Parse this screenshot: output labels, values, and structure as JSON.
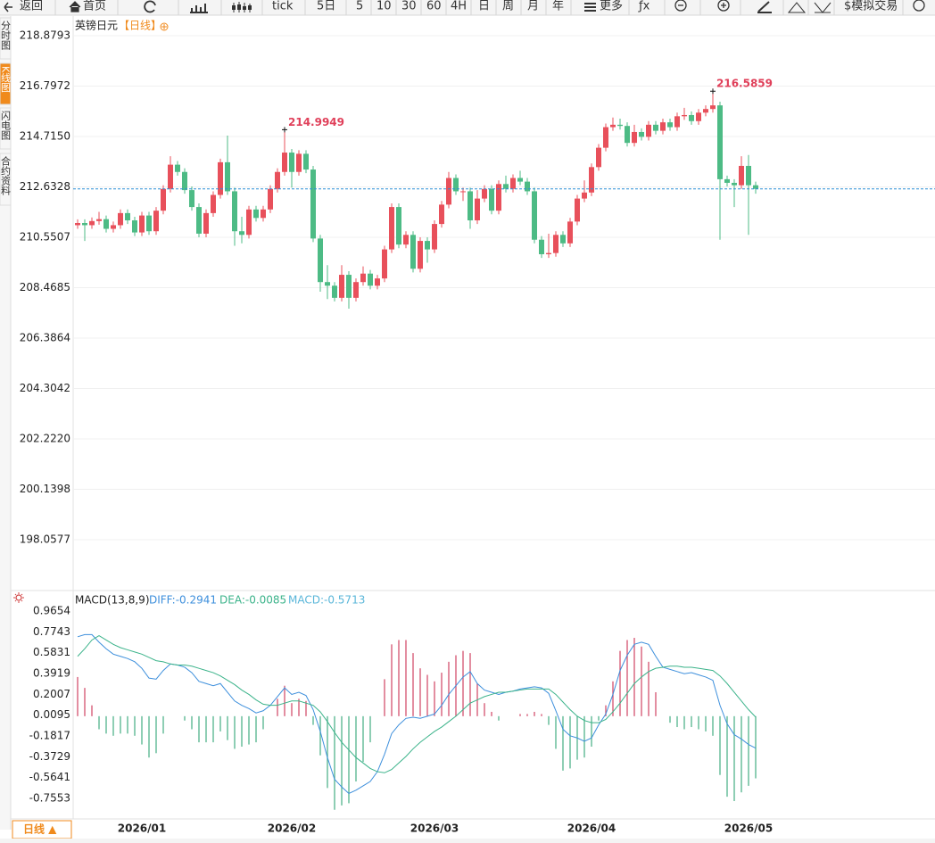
{
  "toolbar": {
    "items": [
      "返回",
      "首页",
      "tick",
      "5日",
      "5",
      "10",
      "30",
      "60",
      "4H",
      "日",
      "周",
      "月",
      "年",
      "更多",
      "ƒx",
      "$模拟交易"
    ]
  },
  "sidebar": {
    "tabs": [
      "分时图",
      "K线图",
      "闪电图",
      "合约资料"
    ],
    "active": 1
  },
  "bottom_tab": "日线 ▲",
  "chart_data": [
    {
      "type": "candlestick",
      "title": "英镑日元",
      "subtitle": "【日线】",
      "up_color": "#e8505b",
      "down_color": "#4dbb85",
      "price_line": true,
      "price_line_color": "#2b8fd6",
      "annotation_color": "#e0405a",
      "grid": true,
      "ylim": [
        196.03,
        219.69
      ],
      "yticks": [
        218.8793,
        216.7972,
        {
          "value": 214.715,
          "label": "214.7150"
        },
        212.6328,
        210.5507,
        208.4685,
        206.3864,
        204.3042,
        {
          "value": 202.222,
          "label": "202.2220"
        },
        200.1398,
        198.0577
      ],
      "open": [
        211.05,
        211.14,
        211.05,
        211.22,
        211.3,
        210.9,
        211.05,
        211.55,
        211.25,
        210.75,
        211.45,
        210.8,
        211.65,
        212.55,
        213.55,
        213.25,
        212.5,
        211.8,
        210.7,
        211.55,
        212.3,
        213.65,
        212.45,
        210.8,
        210.65,
        211.7,
        211.35,
        211.7,
        212.55,
        213.25,
        214.05,
        213.25,
        214.0,
        213.35,
        210.5,
        208.7,
        208.55,
        208.05,
        209.0,
        208.05,
        208.7,
        209.05,
        208.55,
        208.85,
        210.05,
        211.8,
        210.25,
        210.65,
        209.25,
        210.4,
        210.05,
        211.1,
        211.9,
        213.0,
        212.45,
        212.45,
        211.25,
        212.15,
        212.55,
        211.65,
        212.75,
        212.55,
        213.0,
        212.85,
        212.45,
        210.45,
        209.85,
        209.9,
        210.65,
        210.3,
        211.2,
        212.15,
        212.4,
        213.45,
        214.25,
        215.1,
        215.2,
        215.15,
        214.45,
        214.9,
        214.7,
        215.2,
        214.95,
        215.3,
        215.1,
        215.55,
        215.6,
        215.35,
        215.7,
        215.85,
        216.0,
        212.95,
        212.8,
        212.7,
        213.5,
        212.7
      ],
      "high": [
        211.29,
        211.29,
        211.37,
        211.6,
        211.45,
        211.2,
        211.7,
        211.7,
        211.4,
        211.6,
        211.6,
        211.8,
        212.7,
        213.9,
        213.7,
        213.4,
        212.65,
        211.95,
        211.7,
        212.45,
        213.8,
        214.75,
        212.6,
        211.4,
        211.85,
        211.85,
        211.85,
        212.7,
        213.4,
        214.9949,
        214.2,
        214.15,
        214.15,
        213.5,
        210.65,
        209.4,
        208.7,
        209.4,
        209.15,
        208.85,
        209.35,
        209.2,
        209.0,
        210.2,
        211.95,
        211.95,
        210.8,
        210.8,
        210.55,
        210.55,
        211.25,
        212.05,
        213.25,
        213.15,
        212.6,
        212.6,
        212.5,
        212.7,
        212.7,
        212.9,
        213.1,
        213.15,
        213.3,
        213.0,
        212.6,
        210.6,
        210.7,
        210.8,
        210.8,
        211.35,
        212.3,
        212.9,
        213.6,
        214.4,
        215.25,
        215.5,
        215.45,
        215.3,
        215.2,
        215.05,
        215.35,
        215.35,
        215.45,
        215.45,
        215.7,
        215.9,
        215.75,
        215.85,
        216.0,
        216.5859,
        216.15,
        213.1,
        212.95,
        213.9,
        213.95,
        212.85
      ],
      "low": [
        210.9,
        210.4,
        210.9,
        211.07,
        210.75,
        210.75,
        210.9,
        211.1,
        210.6,
        210.6,
        210.65,
        210.65,
        211.5,
        212.4,
        213.1,
        212.35,
        211.65,
        210.55,
        210.55,
        211.4,
        212.15,
        212.3,
        210.2,
        210.3,
        210.5,
        211.2,
        211.2,
        211.55,
        212.4,
        213.1,
        212.6,
        213.1,
        213.2,
        210.35,
        208.3,
        208.0,
        207.9,
        207.9,
        207.6,
        207.9,
        208.55,
        208.4,
        208.4,
        208.7,
        209.9,
        210.1,
        210.1,
        209.1,
        209.1,
        209.5,
        209.9,
        210.95,
        211.75,
        212.3,
        212.05,
        210.9,
        211.1,
        212.0,
        211.5,
        211.5,
        212.4,
        212.4,
        212.7,
        212.3,
        210.3,
        209.7,
        209.7,
        209.75,
        210.15,
        210.15,
        211.05,
        212.0,
        212.25,
        213.3,
        214.1,
        214.95,
        215.0,
        214.3,
        214.3,
        214.55,
        214.55,
        214.8,
        214.8,
        214.95,
        214.95,
        215.4,
        215.2,
        215.2,
        215.55,
        215.7,
        210.45,
        212.65,
        211.8,
        212.55,
        210.65,
        212.35
      ],
      "close": [
        211.14,
        211.05,
        211.22,
        211.3,
        210.9,
        211.05,
        211.55,
        211.25,
        210.75,
        211.45,
        210.8,
        211.65,
        212.55,
        213.55,
        213.25,
        212.5,
        211.8,
        210.7,
        211.55,
        212.3,
        213.65,
        212.45,
        210.8,
        210.65,
        211.7,
        211.35,
        211.7,
        212.55,
        213.25,
        214.05,
        213.25,
        214.0,
        213.35,
        210.5,
        208.7,
        208.55,
        208.05,
        209.0,
        208.05,
        208.7,
        209.05,
        208.55,
        208.85,
        210.05,
        211.8,
        210.25,
        210.65,
        209.25,
        210.4,
        210.05,
        211.1,
        211.9,
        213.0,
        212.45,
        212.45,
        211.25,
        212.15,
        212.55,
        211.65,
        212.75,
        212.55,
        213.0,
        212.85,
        212.45,
        210.45,
        209.85,
        209.9,
        210.65,
        210.3,
        211.2,
        212.15,
        212.4,
        213.45,
        214.25,
        215.1,
        215.2,
        215.15,
        214.45,
        214.9,
        214.7,
        215.2,
        214.95,
        215.3,
        215.1,
        215.55,
        215.6,
        215.35,
        215.7,
        215.85,
        216.0,
        212.95,
        212.8,
        212.7,
        213.5,
        212.7,
        212.55
      ]
    },
    {
      "type": "macd",
      "title": "MACD(13,8,9)",
      "ylim": [
        -0.944,
        1.13
      ],
      "yticks": [
        0.9654,
        0.7743,
        0.5831,
        0.3919,
        0.2007,
        0.0095,
        -0.1817,
        -0.3729,
        -0.5641,
        -0.7553
      ],
      "up_color": "#d4506e",
      "down_color": "#52b38c",
      "categories": [
        null,
        null,
        null,
        null,
        null,
        null,
        null,
        null,
        null,
        "2026/01",
        null,
        null,
        null,
        null,
        null,
        null,
        null,
        null,
        null,
        null,
        null,
        null,
        null,
        null,
        null,
        null,
        null,
        null,
        null,
        null,
        "2026/02",
        null,
        null,
        null,
        null,
        null,
        null,
        null,
        null,
        null,
        null,
        null,
        null,
        null,
        null,
        null,
        null,
        null,
        null,
        null,
        "2026/03",
        null,
        null,
        null,
        null,
        null,
        null,
        null,
        null,
        null,
        null,
        null,
        null,
        null,
        null,
        null,
        null,
        null,
        null,
        null,
        null,
        null,
        "2026/04",
        null,
        null,
        null,
        null,
        null,
        null,
        null,
        null,
        null,
        null,
        null,
        null,
        null,
        null,
        null,
        null,
        null,
        null,
        null,
        null,
        null,
        "2026/05",
        null
      ],
      "series": [
        {
          "name": "DIFF:-0.2941",
          "color": "#3d8fdc",
          "kind": "line",
          "values": [
            0.73,
            0.75,
            0.75,
            0.68,
            0.62,
            0.57,
            0.55,
            0.53,
            0.5,
            0.44,
            0.35,
            0.34,
            0.42,
            0.48,
            0.47,
            0.45,
            0.4,
            0.32,
            0.3,
            0.28,
            0.3,
            0.22,
            0.14,
            0.1,
            0.07,
            0.03,
            0.05,
            0.1,
            0.18,
            0.26,
            0.2,
            0.22,
            0.19,
            0.06,
            -0.14,
            -0.38,
            -0.58,
            -0.65,
            -0.71,
            -0.68,
            -0.64,
            -0.6,
            -0.51,
            -0.35,
            -0.16,
            -0.08,
            -0.02,
            -0.01,
            -0.02,
            0.0,
            0.02,
            0.1,
            0.2,
            0.28,
            0.36,
            0.41,
            0.3,
            0.24,
            0.22,
            0.2,
            0.22,
            0.23,
            0.25,
            0.26,
            0.27,
            0.26,
            0.21,
            0.05,
            -0.12,
            -0.18,
            -0.2,
            -0.23,
            -0.2,
            -0.08,
            0.02,
            0.2,
            0.42,
            0.56,
            0.66,
            0.68,
            0.66,
            0.55,
            0.45,
            0.43,
            0.41,
            0.39,
            0.4,
            0.38,
            0.36,
            0.33,
            0.1,
            -0.07,
            -0.17,
            -0.21,
            -0.26,
            -0.2941
          ]
        },
        {
          "name": "DEA:-0.0085",
          "color": "#3bb38a",
          "kind": "line",
          "values": [
            0.55,
            0.62,
            0.7,
            0.74,
            0.7,
            0.66,
            0.63,
            0.61,
            0.59,
            0.57,
            0.54,
            0.51,
            0.5,
            0.48,
            0.47,
            0.47,
            0.46,
            0.44,
            0.42,
            0.4,
            0.37,
            0.33,
            0.29,
            0.24,
            0.2,
            0.15,
            0.11,
            0.1,
            0.1,
            0.12,
            0.14,
            0.14,
            0.12,
            0.1,
            0.04,
            -0.05,
            -0.15,
            -0.24,
            -0.31,
            -0.38,
            -0.43,
            -0.48,
            -0.51,
            -0.52,
            -0.49,
            -0.43,
            -0.37,
            -0.3,
            -0.24,
            -0.19,
            -0.14,
            -0.1,
            -0.05,
            0.0,
            0.06,
            0.12,
            0.15,
            0.18,
            0.2,
            0.22,
            0.22,
            0.23,
            0.24,
            0.25,
            0.25,
            0.25,
            0.25,
            0.2,
            0.13,
            0.06,
            0.0,
            -0.04,
            -0.06,
            -0.06,
            -0.03,
            0.04,
            0.12,
            0.21,
            0.3,
            0.36,
            0.41,
            0.44,
            0.45,
            0.46,
            0.46,
            0.45,
            0.45,
            0.44,
            0.43,
            0.42,
            0.37,
            0.3,
            0.22,
            0.14,
            0.06,
            -0.0085
          ]
        },
        {
          "name": "MACD:-0.5713",
          "color": "#5ab6d9",
          "kind": "bar",
          "values": [
            0.36,
            0.26,
            0.1,
            -0.12,
            -0.16,
            -0.18,
            -0.16,
            -0.16,
            -0.18,
            -0.26,
            -0.38,
            -0.34,
            -0.16,
            0.0,
            0.0,
            -0.04,
            -0.12,
            -0.24,
            -0.24,
            -0.24,
            -0.14,
            -0.22,
            -0.3,
            -0.28,
            -0.26,
            -0.24,
            -0.12,
            0.0,
            0.16,
            0.28,
            0.12,
            0.16,
            0.14,
            -0.08,
            -0.36,
            -0.66,
            -0.86,
            -0.82,
            -0.8,
            -0.6,
            -0.42,
            -0.24,
            0.0,
            0.34,
            0.66,
            0.7,
            0.7,
            0.58,
            0.44,
            0.38,
            0.32,
            0.4,
            0.5,
            0.56,
            0.6,
            0.58,
            0.3,
            0.12,
            0.04,
            -0.04,
            0.0,
            0.0,
            0.02,
            0.02,
            0.04,
            0.02,
            -0.08,
            -0.3,
            -0.5,
            -0.48,
            -0.4,
            -0.38,
            -0.28,
            -0.04,
            0.1,
            0.32,
            0.6,
            0.7,
            0.72,
            0.64,
            0.5,
            0.22,
            0.0,
            -0.06,
            -0.1,
            -0.12,
            -0.1,
            -0.12,
            -0.14,
            -0.18,
            -0.54,
            -0.74,
            -0.78,
            -0.7,
            -0.64,
            -0.5713
          ]
        }
      ]
    }
  ]
}
